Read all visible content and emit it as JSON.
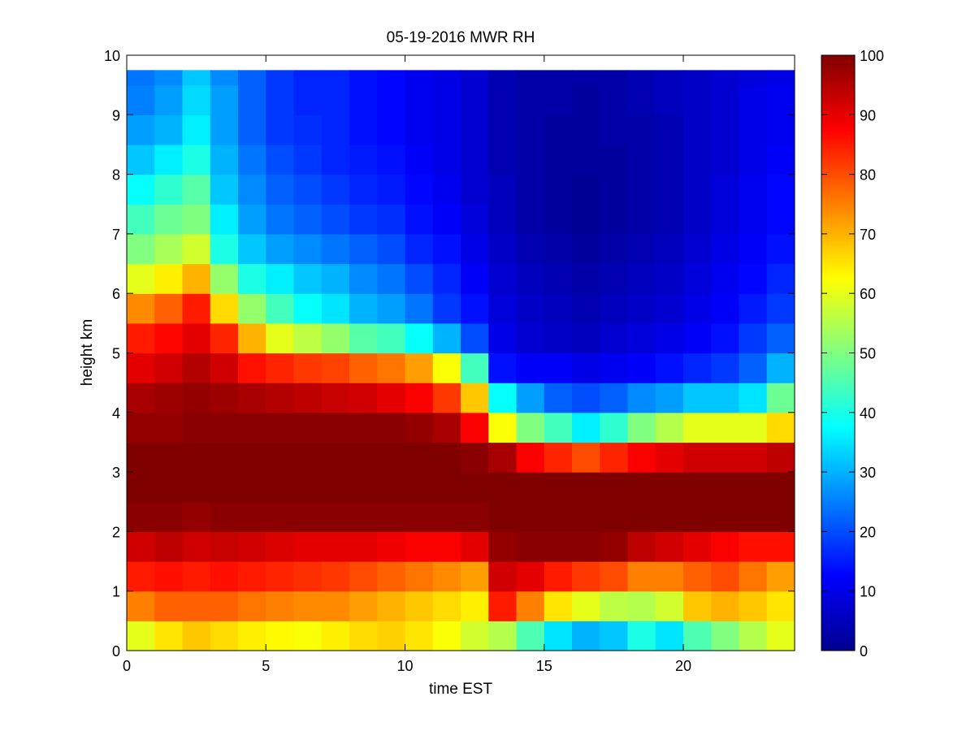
{
  "chart_data": {
    "type": "heatmap",
    "title": "05-19-2016 MWR RH",
    "xlabel": "time EST",
    "ylabel": "height km",
    "xlim": [
      0,
      24
    ],
    "ylim": [
      0,
      10
    ],
    "xticks": [
      0,
      5,
      10,
      15,
      20
    ],
    "xtick_labels": [
      "0",
      "5",
      "10",
      "15",
      "20"
    ],
    "yticks": [
      0,
      1,
      2,
      3,
      4,
      5,
      6,
      7,
      8,
      9,
      10
    ],
    "ytick_labels": [
      "0",
      "1",
      "2",
      "3",
      "4",
      "5",
      "6",
      "7",
      "8",
      "9",
      "10"
    ],
    "colorbar": {
      "colormap": "jet",
      "range": [
        0,
        100
      ],
      "ticks": [
        0,
        10,
        20,
        30,
        40,
        50,
        60,
        70,
        80,
        90,
        100
      ],
      "tick_labels": [
        "0",
        "10",
        "20",
        "30",
        "40",
        "50",
        "60",
        "70",
        "80",
        "90",
        "100"
      ]
    },
    "times": [
      0.5,
      1.5,
      2.5,
      3.5,
      4.5,
      5.5,
      6.5,
      7.5,
      8.5,
      9.5,
      10.5,
      11.5,
      12.5,
      13.5,
      14.5,
      15.5,
      16.5,
      17.5,
      18.5,
      19.5,
      20.5,
      21.5,
      22.5,
      23.5
    ],
    "time_step": 1,
    "heights": [
      0,
      0.5,
      1,
      1.5,
      2,
      2.5,
      3,
      3.5,
      4,
      4.5,
      5,
      5.5,
      6,
      6.5,
      7,
      7.5,
      8,
      8.5,
      9,
      9.5,
      9.75
    ],
    "rh_grid": [
      [
        60,
        65,
        68,
        66,
        64,
        63,
        62,
        64,
        66,
        67,
        65,
        62,
        58,
        55,
        45,
        35,
        30,
        32,
        40,
        35,
        45,
        50,
        55,
        60
      ],
      [
        75,
        78,
        78,
        78,
        76,
        75,
        74,
        74,
        72,
        70,
        68,
        66,
        64,
        85,
        75,
        65,
        60,
        56,
        55,
        58,
        68,
        70,
        68,
        65
      ],
      [
        85,
        86,
        85,
        86,
        85,
        84,
        83,
        82,
        80,
        78,
        76,
        74,
        72,
        92,
        90,
        85,
        82,
        80,
        75,
        75,
        78,
        80,
        76,
        72
      ],
      [
        92,
        94,
        92,
        93,
        92,
        91,
        90,
        90,
        90,
        89,
        88,
        88,
        90,
        98,
        99,
        99,
        99,
        98,
        94,
        92,
        90,
        88,
        86,
        86
      ],
      [
        99,
        99,
        98,
        99,
        99,
        99,
        99,
        99,
        99,
        99,
        99,
        99,
        99,
        100,
        100,
        100,
        100,
        100,
        100,
        100,
        100,
        100,
        100,
        100
      ],
      [
        100,
        100,
        100,
        100,
        100,
        100,
        100,
        100,
        100,
        100,
        100,
        100,
        100,
        100,
        100,
        100,
        100,
        100,
        100,
        100,
        100,
        100,
        100,
        100
      ],
      [
        100,
        100,
        100,
        100,
        100,
        100,
        100,
        100,
        100,
        100,
        100,
        100,
        99,
        96,
        88,
        84,
        80,
        84,
        88,
        90,
        92,
        92,
        92,
        94
      ],
      [
        98,
        98,
        99,
        99,
        99,
        99,
        99,
        99,
        99,
        99,
        98,
        96,
        88,
        62,
        50,
        44,
        36,
        42,
        50,
        55,
        60,
        60,
        60,
        66
      ],
      [
        96,
        97,
        98,
        97,
        96,
        95,
        94,
        93,
        92,
        90,
        88,
        82,
        68,
        38,
        28,
        22,
        20,
        22,
        26,
        28,
        32,
        32,
        35,
        48
      ],
      [
        90,
        92,
        95,
        92,
        86,
        84,
        82,
        81,
        78,
        76,
        72,
        62,
        44,
        14,
        12,
        12,
        10,
        11,
        12,
        14,
        16,
        18,
        22,
        30
      ],
      [
        85,
        87,
        90,
        84,
        70,
        60,
        56,
        52,
        46,
        44,
        38,
        30,
        20,
        10,
        8,
        7,
        6,
        8,
        9,
        10,
        12,
        14,
        18,
        22
      ],
      [
        74,
        78,
        85,
        66,
        52,
        44,
        38,
        35,
        30,
        28,
        24,
        18,
        14,
        9,
        7,
        6,
        5,
        6,
        7,
        8,
        10,
        12,
        15,
        18
      ],
      [
        60,
        64,
        70,
        52,
        40,
        36,
        32,
        30,
        26,
        24,
        20,
        16,
        12,
        8,
        6,
        5,
        4,
        5,
        6,
        7,
        9,
        11,
        13,
        16
      ],
      [
        50,
        54,
        58,
        40,
        32,
        28,
        26,
        24,
        22,
        20,
        16,
        14,
        10,
        7,
        5,
        4,
        3,
        4,
        5,
        6,
        8,
        10,
        12,
        14
      ],
      [
        44,
        48,
        50,
        36,
        28,
        24,
        22,
        20,
        18,
        17,
        14,
        12,
        9,
        6,
        4,
        3,
        2,
        3,
        4,
        5,
        7,
        9,
        11,
        13
      ],
      [
        38,
        42,
        46,
        32,
        26,
        22,
        20,
        18,
        16,
        15,
        13,
        11,
        8,
        6,
        4,
        3,
        2,
        3,
        4,
        5,
        7,
        9,
        11,
        13
      ],
      [
        32,
        36,
        40,
        30,
        24,
        20,
        18,
        16,
        15,
        14,
        12,
        10,
        8,
        5,
        4,
        3,
        3,
        3,
        4,
        5,
        7,
        8,
        10,
        12
      ],
      [
        28,
        30,
        36,
        28,
        22,
        18,
        17,
        16,
        14,
        13,
        11,
        10,
        8,
        5,
        4,
        3,
        3,
        4,
        4,
        5,
        7,
        8,
        10,
        11
      ],
      [
        25,
        28,
        34,
        28,
        22,
        18,
        16,
        16,
        14,
        13,
        11,
        10,
        8,
        5,
        4,
        4,
        3,
        4,
        5,
        6,
        7,
        8,
        10,
        11
      ],
      [
        24,
        26,
        32,
        26,
        22,
        18,
        16,
        16,
        14,
        13,
        11,
        10,
        8,
        5,
        4,
        4,
        4,
        4,
        5,
        6,
        7,
        8,
        9,
        10
      ],
      [
        24,
        26,
        32,
        26,
        22,
        18,
        16,
        16,
        14,
        13,
        11,
        10,
        8,
        5,
        4,
        4,
        4,
        4,
        5,
        6,
        7,
        8,
        9,
        10
      ]
    ]
  }
}
